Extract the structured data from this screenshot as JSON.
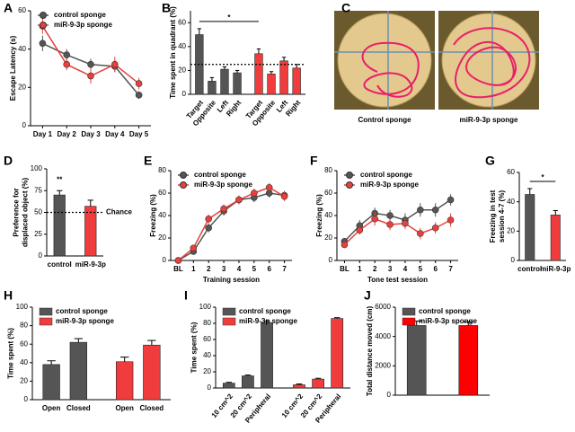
{
  "chart_data": [
    {
      "type": "line",
      "panel": "A",
      "ylabel": [
        "Escape Latency (s)"
      ],
      "categories": [
        "Day 1",
        "Day 2",
        "Day 3",
        "Day 4",
        "Day 5"
      ],
      "ylim": [
        0,
        60
      ],
      "yticks": [
        0,
        20,
        40,
        60
      ],
      "legend": "upper left",
      "series": [
        {
          "name": "control sponge",
          "color": "#555555",
          "values": [
            43,
            37,
            32,
            31,
            16
          ],
          "errors": [
            4,
            3,
            3,
            3,
            2
          ]
        },
        {
          "name": "miR-9-3p sponge",
          "color": "#e8403c",
          "values": [
            52,
            32,
            26,
            32,
            22
          ],
          "errors": [
            4,
            3,
            4,
            4,
            3
          ]
        }
      ]
    },
    {
      "type": "bar",
      "panel": "B",
      "ylabel": [
        "Time spent in quadrant (%)"
      ],
      "ylim": [
        0,
        70
      ],
      "yticks": [
        0,
        20,
        40,
        60
      ],
      "xtick_rotation": 50,
      "reference": 25,
      "annotations": [
        {
          "text": "*",
          "bars": [
            0,
            4
          ]
        }
      ],
      "series": [
        {
          "color": "#555555",
          "categories": [
            "Target",
            "Opposite",
            "Left",
            "Right"
          ],
          "values": [
            50,
            11,
            21,
            18
          ],
          "errors": [
            5,
            3,
            2,
            2
          ]
        },
        {
          "color": "#f03c3c",
          "categories": [
            "Target",
            "Opposite",
            "Left",
            "Right"
          ],
          "values": [
            34,
            17,
            28,
            22
          ],
          "errors": [
            4,
            2,
            3,
            3
          ]
        }
      ]
    },
    {
      "type": "image",
      "panel": "C",
      "captions": [
        "Control sponge",
        "miR-9-3p sponge"
      ]
    },
    {
      "type": "bar",
      "panel": "D",
      "ylabel": [
        "Preference for",
        "displaced object (%)"
      ],
      "ylim": [
        0,
        100
      ],
      "yticks": [
        0,
        25,
        50,
        75,
        100
      ],
      "reference": 50,
      "reference_label": "Chance",
      "annotations": [
        {
          "text": "**",
          "bars": [
            0
          ]
        }
      ],
      "series": [
        {
          "color": "#555555",
          "categories": [
            "control"
          ],
          "values": [
            70
          ],
          "errors": [
            5
          ]
        },
        {
          "color": "#f03c3c",
          "categories": [
            "miR-9-3p"
          ],
          "values": [
            57
          ],
          "errors": [
            7
          ]
        }
      ]
    },
    {
      "type": "line",
      "panel": "E",
      "ylabel": [
        "Freezing (%)"
      ],
      "xlabel": "Training session",
      "categories": [
        "BL",
        "1",
        "2",
        "3",
        "4",
        "5",
        "6",
        "7"
      ],
      "ylim": [
        0,
        80
      ],
      "yticks": [
        0,
        20,
        40,
        60,
        80
      ],
      "legend": "upper left",
      "series": [
        {
          "name": "control sponge",
          "color": "#555555",
          "values": [
            0,
            8,
            29,
            44,
            54,
            56,
            60,
            58
          ],
          "errors": [
            0,
            2,
            4,
            4,
            4,
            4,
            4,
            4
          ]
        },
        {
          "name": "miR-9-3p sponge",
          "color": "#e8403c",
          "values": [
            0,
            11,
            37,
            46,
            54,
            60,
            65,
            57
          ],
          "errors": [
            0,
            2,
            4,
            4,
            4,
            4,
            4,
            4
          ]
        }
      ]
    },
    {
      "type": "line",
      "panel": "F",
      "ylabel": [
        "Freezing (%)"
      ],
      "xlabel": "Tone test session",
      "categories": [
        "BL",
        "1",
        "2",
        "3",
        "4",
        "5",
        "6",
        "7"
      ],
      "ylim": [
        0,
        80
      ],
      "yticks": [
        0,
        20,
        40,
        60,
        80
      ],
      "legend": "upper left",
      "series": [
        {
          "name": "control sponge",
          "color": "#555555",
          "values": [
            17,
            31,
            42,
            40,
            36,
            45,
            45,
            54
          ],
          "errors": [
            3,
            5,
            5,
            5,
            6,
            6,
            6,
            5
          ]
        },
        {
          "name": "miR-9-3p sponge",
          "color": "#e8403c",
          "values": [
            14,
            27,
            37,
            32,
            33,
            24,
            29,
            36
          ],
          "errors": [
            3,
            4,
            6,
            5,
            5,
            5,
            5,
            6
          ]
        }
      ]
    },
    {
      "type": "bar",
      "panel": "G",
      "ylabel": [
        "Freezing in test",
        "session 4-7 (%)"
      ],
      "ylim": [
        0,
        60
      ],
      "yticks": [
        0,
        20,
        40,
        60
      ],
      "annotations": [
        {
          "text": "*",
          "bars": [
            0,
            1
          ]
        }
      ],
      "series": [
        {
          "color": "#555555",
          "categories": [
            "control"
          ],
          "values": [
            45
          ],
          "errors": [
            4
          ]
        },
        {
          "color": "#f03c3c",
          "categories": [
            "miR-9-3p"
          ],
          "values": [
            31
          ],
          "errors": [
            3
          ]
        }
      ]
    },
    {
      "type": "bar",
      "panel": "H",
      "ylabel": [
        "Time spent (%)"
      ],
      "ylim": [
        0,
        100
      ],
      "yticks": [
        0,
        20,
        40,
        60,
        80,
        100
      ],
      "legend": "upper left",
      "series": [
        {
          "name": "control sponge",
          "color": "#555555",
          "categories": [
            "Open",
            "Closed"
          ],
          "values": [
            38,
            62
          ],
          "errors": [
            4,
            4
          ]
        },
        {
          "name": "miR-9-3p sponge",
          "color": "#f03c3c",
          "categories": [
            "Open",
            "Closed"
          ],
          "values": [
            41,
            59
          ],
          "errors": [
            5,
            5
          ]
        }
      ]
    },
    {
      "type": "bar",
      "panel": "I",
      "ylabel": [
        "Time spent (%)"
      ],
      "ylim": [
        0,
        100
      ],
      "yticks": [
        0,
        20,
        40,
        60,
        80,
        100
      ],
      "legend": "upper left",
      "xtick_rotation": 50,
      "series": [
        {
          "name": "control sponge",
          "color": "#555555",
          "categories": [
            "10 cm^2",
            "20 cm^2",
            "Peripheral"
          ],
          "values": [
            6,
            15,
            81
          ],
          "errors": [
            1,
            1,
            2
          ]
        },
        {
          "name": "miR-9-3p sponge",
          "color": "#f03c3c",
          "categories": [
            "10 cm^2",
            "20 cm^2",
            "Peripheral"
          ],
          "values": [
            4,
            11,
            86
          ],
          "errors": [
            1,
            1,
            1
          ]
        }
      ]
    },
    {
      "type": "bar",
      "panel": "J",
      "ylabel": [
        "Total distance moved (cm)"
      ],
      "ylim": [
        0,
        6000
      ],
      "yticks": [
        0,
        2000,
        4000,
        6000
      ],
      "legend": "upper left",
      "series": [
        {
          "name": "control sponge",
          "color": "#555555",
          "values": [
            4750
          ],
          "errors": [
            300
          ]
        },
        {
          "name": "miR-9-3p sponge",
          "color": "#ff0000",
          "values": [
            4750
          ],
          "errors": [
            250
          ]
        }
      ]
    }
  ]
}
